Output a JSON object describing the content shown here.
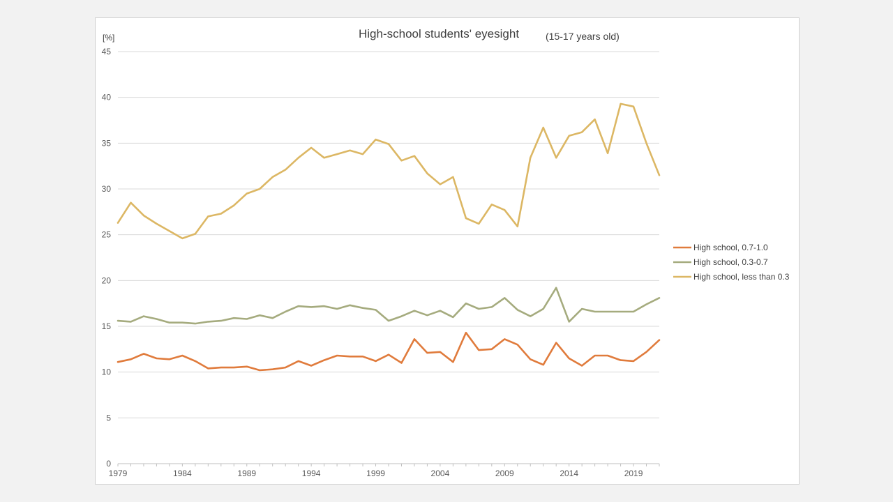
{
  "chart_data": {
    "type": "line",
    "title": "High-school students' eyesight",
    "subtitle": "(15-17 years old)",
    "y_unit": "[%]",
    "ylim": [
      0,
      45
    ],
    "y_ticks": [
      0,
      5,
      10,
      15,
      20,
      25,
      30,
      35,
      40,
      45
    ],
    "x_range": [
      1979,
      2021
    ],
    "x_ticks": [
      1979,
      1984,
      1989,
      1994,
      1999,
      2004,
      2009,
      2014,
      2019
    ],
    "grid": "horizontal",
    "legend_position": "right",
    "series": [
      {
        "name": "High school, 0.7-1.0",
        "color": "#e07b3c",
        "x": [
          1979,
          1980,
          1981,
          1982,
          1983,
          1984,
          1985,
          1986,
          1987,
          1988,
          1989,
          1990,
          1991,
          1992,
          1993,
          1994,
          1995,
          1996,
          1997,
          1998,
          1999,
          2000,
          2001,
          2002,
          2003,
          2004,
          2005,
          2006,
          2007,
          2008,
          2009,
          2010,
          2011,
          2012,
          2013,
          2014,
          2015,
          2016,
          2017,
          2018,
          2019,
          2020,
          2021
        ],
        "values": [
          11.1,
          11.4,
          12.0,
          11.5,
          11.4,
          11.8,
          11.2,
          10.4,
          10.5,
          10.5,
          10.6,
          10.2,
          10.3,
          10.5,
          11.2,
          10.7,
          11.3,
          11.8,
          11.7,
          11.7,
          11.2,
          11.9,
          11.0,
          13.6,
          12.1,
          12.2,
          11.1,
          14.3,
          12.4,
          12.5,
          13.6,
          13.0,
          11.4,
          10.8,
          13.2,
          11.5,
          10.7,
          11.8,
          11.8,
          11.3,
          11.2,
          12.2,
          13.5
        ]
      },
      {
        "name": "High school, 0.3-0.7",
        "color": "#a5ab7e",
        "x": [
          1979,
          1980,
          1981,
          1982,
          1983,
          1984,
          1985,
          1986,
          1987,
          1988,
          1989,
          1990,
          1991,
          1992,
          1993,
          1994,
          1995,
          1996,
          1997,
          1998,
          1999,
          2000,
          2001,
          2002,
          2003,
          2004,
          2005,
          2006,
          2007,
          2008,
          2009,
          2010,
          2011,
          2012,
          2013,
          2014,
          2015,
          2016,
          2017,
          2018,
          2019,
          2020,
          2021
        ],
        "values": [
          15.6,
          15.5,
          16.1,
          15.8,
          15.4,
          15.4,
          15.3,
          15.5,
          15.6,
          15.9,
          15.8,
          16.2,
          15.9,
          16.6,
          17.2,
          17.1,
          17.2,
          16.9,
          17.3,
          17.0,
          16.8,
          15.6,
          16.1,
          16.7,
          16.2,
          16.7,
          16.0,
          17.5,
          16.9,
          17.1,
          18.1,
          16.8,
          16.1,
          16.9,
          19.2,
          15.5,
          16.9,
          16.6,
          16.6,
          16.6,
          16.6,
          17.4,
          18.1
        ]
      },
      {
        "name": "High school, less than 0.3",
        "color": "#dcb764",
        "x": [
          1979,
          1980,
          1981,
          1982,
          1983,
          1984,
          1985,
          1986,
          1987,
          1988,
          1989,
          1990,
          1991,
          1992,
          1993,
          1994,
          1995,
          1996,
          1997,
          1998,
          1999,
          2000,
          2001,
          2002,
          2003,
          2004,
          2005,
          2006,
          2007,
          2008,
          2009,
          2010,
          2011,
          2012,
          2013,
          2014,
          2015,
          2016,
          2017,
          2018,
          2019,
          2020,
          2021
        ],
        "values": [
          26.3,
          28.5,
          27.1,
          26.2,
          25.4,
          24.6,
          25.1,
          27.0,
          27.3,
          28.2,
          29.5,
          30.0,
          31.3,
          32.1,
          33.4,
          34.5,
          33.4,
          33.8,
          34.2,
          33.8,
          35.4,
          34.9,
          33.1,
          33.6,
          31.7,
          30.5,
          31.3,
          26.8,
          26.2,
          28.3,
          27.7,
          25.9,
          33.4,
          36.7,
          33.4,
          35.8,
          36.2,
          37.6,
          33.9,
          39.3,
          39.0,
          35.0,
          31.5
        ]
      }
    ]
  }
}
